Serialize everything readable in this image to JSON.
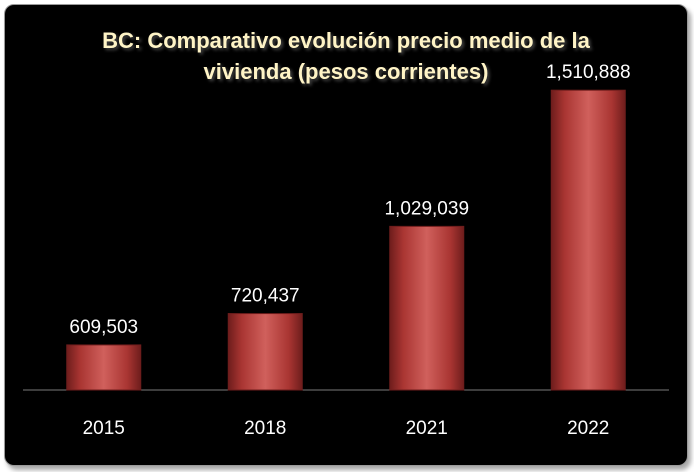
{
  "chart_data": {
    "type": "bar",
    "title": "BC: Comparativo evolución precio medio de la vivienda (pesos corrientes)",
    "title_lines": [
      "BC: Comparativo evolución precio medio de la",
      "vivienda (pesos corrientes)"
    ],
    "categories": [
      "2015",
      "2018",
      "2021",
      "2022"
    ],
    "values": [
      609503,
      720437,
      1029039,
      1510888
    ],
    "value_labels": [
      "609,503",
      "720,437",
      "1,029,039",
      "1,510,888"
    ],
    "xlabel": "",
    "ylabel": "",
    "ylim": [
      450000,
      1600000
    ],
    "grid": false,
    "legend": "none",
    "colors": {
      "background": "#000000",
      "bar": "#a93532",
      "bar_highlight": "#d0605c",
      "bar_shadow": "#6e1d1c",
      "title": "#fff4c6",
      "text": "#ffffff"
    }
  }
}
